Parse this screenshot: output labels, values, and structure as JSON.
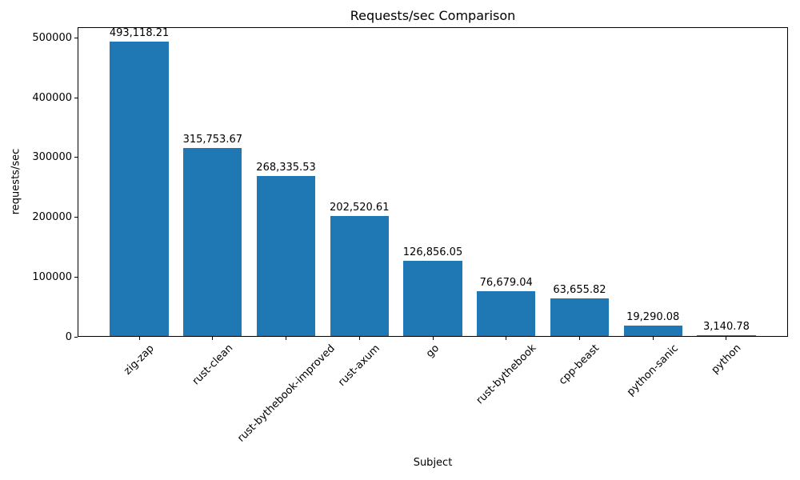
{
  "chart_data": {
    "type": "bar",
    "title": "Requests/sec Comparison",
    "xlabel": "Subject",
    "ylabel": "requests/sec",
    "categories": [
      "zig-zap",
      "rust-clean",
      "rust-bythebook-improved",
      "rust-axum",
      "go",
      "rust-bythebook",
      "cpp-beast",
      "python-sanic",
      "python"
    ],
    "values": [
      493118.21,
      315753.67,
      268335.53,
      202520.61,
      126856.05,
      76679.04,
      63655.82,
      19290.08,
      3140.78
    ],
    "bar_labels": [
      "493,118.21",
      "315,753.67",
      "268,335.53",
      "202,520.61",
      "126,856.05",
      "76,679.04",
      "63,655.82",
      "19,290.08",
      "3,140.78"
    ],
    "bar_color": "#1f77b4",
    "ylim": [
      0,
      517774
    ],
    "yticks": [
      0,
      100000,
      200000,
      300000,
      400000,
      500000
    ],
    "ytick_labels": [
      "0",
      "100000",
      "200000",
      "300000",
      "400000",
      "500000"
    ],
    "grid": false,
    "legend": null
  }
}
